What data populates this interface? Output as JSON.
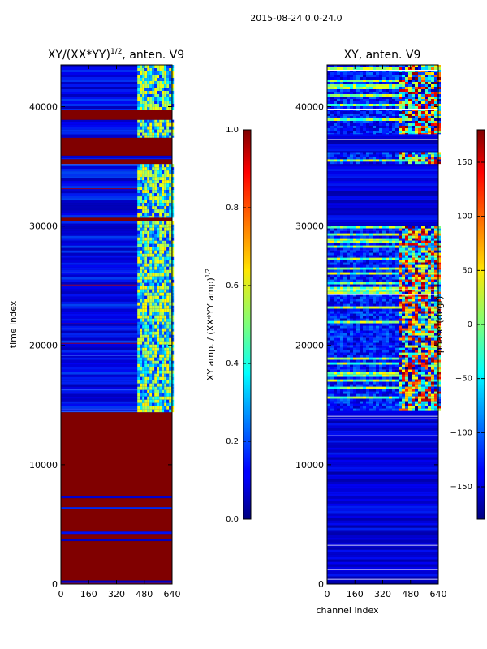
{
  "suptitle": "2015-08-24 0.0-24.0",
  "chart_data": [
    {
      "type": "heatmap",
      "title": "XY/(XX*YY)^{1/2}, anten. V9",
      "title_main": "XY/(XX*YY)",
      "title_sup": "1/2",
      "title_tail": ", anten. V9",
      "xlabel": "",
      "ylabel": "time index",
      "xlim": [
        0,
        640
      ],
      "ylim": [
        0,
        43500
      ],
      "xticks": [
        0,
        160,
        320,
        480,
        640
      ],
      "yticks": [
        0,
        10000,
        20000,
        30000,
        40000
      ],
      "colorbar": {
        "label": "XY amp. / (XX*YY amp)^{1/2}",
        "label_main": "XY amp. / (XX*YY amp)",
        "label_sup": "1/2",
        "vmin": 0.0,
        "vmax": 1.0,
        "ticks": [
          0.0,
          0.2,
          0.4,
          0.6,
          0.8,
          1.0
        ],
        "tick_labels": [
          "0.0",
          "0.2",
          "0.4",
          "0.6",
          "0.8",
          "1.0"
        ],
        "colormap": "jet"
      },
      "bands": [
        {
          "t0": 0,
          "t1": 300,
          "kind": "low"
        },
        {
          "t0": 300,
          "t1": 3600,
          "kind": "sat"
        },
        {
          "t0": 3600,
          "t1": 3750,
          "kind": "low"
        },
        {
          "t0": 3750,
          "t1": 4200,
          "kind": "sat"
        },
        {
          "t0": 4200,
          "t1": 4400,
          "kind": "low"
        },
        {
          "t0": 4400,
          "t1": 6300,
          "kind": "sat"
        },
        {
          "t0": 6300,
          "t1": 6450,
          "kind": "low"
        },
        {
          "t0": 6450,
          "t1": 7200,
          "kind": "sat"
        },
        {
          "t0": 7200,
          "t1": 7350,
          "kind": "low"
        },
        {
          "t0": 7350,
          "t1": 14400,
          "kind": "sat"
        },
        {
          "t0": 14400,
          "t1": 30400,
          "kind": "low"
        },
        {
          "t0": 30400,
          "t1": 30700,
          "kind": "sat"
        },
        {
          "t0": 30700,
          "t1": 35200,
          "kind": "low"
        },
        {
          "t0": 35200,
          "t1": 35600,
          "kind": "sat"
        },
        {
          "t0": 35600,
          "t1": 35900,
          "kind": "low"
        },
        {
          "t0": 35900,
          "t1": 37400,
          "kind": "sat"
        },
        {
          "t0": 37400,
          "t1": 38900,
          "kind": "low"
        },
        {
          "t0": 38900,
          "t1": 39700,
          "kind": "sat"
        },
        {
          "t0": 39700,
          "t1": 43500,
          "kind": "low"
        }
      ],
      "active_channels": [
        440,
        640
      ]
    },
    {
      "type": "heatmap",
      "title": "XY, anten. V9",
      "xlabel": "channel index",
      "ylabel": "",
      "xlim": [
        0,
        640
      ],
      "ylim": [
        0,
        43500
      ],
      "xticks": [
        0,
        160,
        320,
        480,
        640
      ],
      "yticks": [
        0,
        10000,
        20000,
        30000,
        40000
      ],
      "colorbar": {
        "label": "phase (degr)",
        "vmin": -180,
        "vmax": 180,
        "ticks": [
          -150,
          -100,
          -50,
          0,
          50,
          100,
          150
        ],
        "tick_labels": [
          "−150",
          "−100",
          "−50",
          "0",
          "50",
          "100",
          "150"
        ],
        "colormap": "jet"
      },
      "bands": [
        {
          "t0": 0,
          "t1": 14500,
          "kind": "low"
        },
        {
          "t0": 14500,
          "t1": 30000,
          "kind": "active"
        },
        {
          "t0": 30000,
          "t1": 35200,
          "kind": "low"
        },
        {
          "t0": 35200,
          "t1": 36200,
          "kind": "active"
        },
        {
          "t0": 36200,
          "t1": 37700,
          "kind": "low"
        },
        {
          "t0": 37700,
          "t1": 43500,
          "kind": "active"
        }
      ],
      "active_channels": [
        400,
        640
      ]
    }
  ]
}
